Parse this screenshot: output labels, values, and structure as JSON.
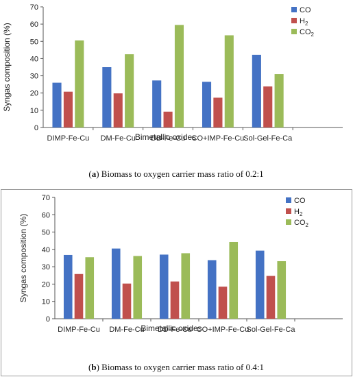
{
  "chart_data": [
    {
      "type": "bar",
      "categories": [
        "DIMP-Fe-Cu",
        "DM-Fe-Cu",
        "DD-Fe-Cu",
        "CO+IMP-Fe-Cu",
        "Sol-Gel-Fe-Ca"
      ],
      "series": [
        {
          "name": "CO",
          "label_base": "CO",
          "label_sub": "",
          "color": "#4472C4",
          "values": [
            26,
            35,
            27.3,
            26.5,
            42.2
          ]
        },
        {
          "name": "H2",
          "label_base": "H",
          "label_sub": "2",
          "color": "#C0504D",
          "values": [
            20.8,
            19.8,
            9.2,
            17.3,
            23.8
          ]
        },
        {
          "name": "CO2",
          "label_base": "CO",
          "label_sub": "2",
          "color": "#9BBB59",
          "values": [
            50.5,
            42.5,
            59.5,
            53.5,
            31
          ]
        }
      ],
      "ylim": [
        0,
        70
      ],
      "yticks": [
        0,
        10,
        20,
        30,
        40,
        50,
        60,
        70
      ],
      "xlabel": "Bimetallic oxides",
      "ylabel": "Syngas composition (%)",
      "legend_position": "top-right",
      "grid": false,
      "caption_tag": "a",
      "caption_text": "Biomass to oxygen carrier mass ratio of 0.2:1"
    },
    {
      "type": "bar",
      "categories": [
        "DIMP-Fe-Cu",
        "DM-Fe-Cu",
        "DD-Fe-Cu",
        "CO+IMP-Fe-Cu",
        "Sol-Gel-Fe-Ca"
      ],
      "series": [
        {
          "name": "CO",
          "label_base": "CO",
          "label_sub": "",
          "color": "#4472C4",
          "values": [
            36.8,
            40.5,
            37,
            33.8,
            39.3
          ]
        },
        {
          "name": "H2",
          "label_base": "H",
          "label_sub": "2",
          "color": "#C0504D",
          "values": [
            25.8,
            20.3,
            21.5,
            18.5,
            24.7
          ]
        },
        {
          "name": "CO2",
          "label_base": "CO",
          "label_sub": "2",
          "color": "#9BBB59",
          "values": [
            35.5,
            36.2,
            37.8,
            44.3,
            33.2
          ]
        }
      ],
      "ylim": [
        0,
        70
      ],
      "yticks": [
        0,
        10,
        20,
        30,
        40,
        50,
        60,
        70
      ],
      "xlabel": "Bimetallic oxides",
      "ylabel": "Syngas composition (%)",
      "legend_position": "top-right",
      "grid": false,
      "caption_tag": "b",
      "caption_text": "Biomass to oxygen carrier mass ratio of 0.4:1"
    }
  ]
}
